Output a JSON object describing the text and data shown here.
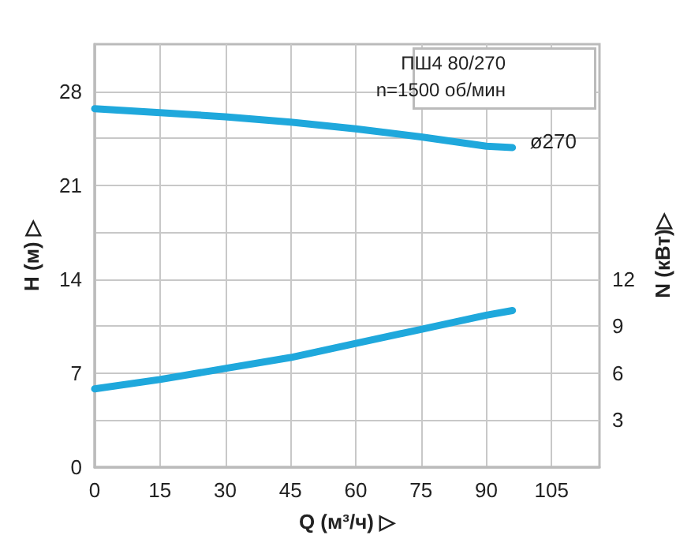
{
  "chart_data": {
    "type": "line",
    "xlabel": "Q (м³/ч) ▷",
    "ylabel": "H (м) ▷",
    "y2label": "N (кВт)▷",
    "annotations": [
      "ПШ4 80/270",
      "n=1500 об/мин"
    ],
    "series": [
      {
        "name": "ø270",
        "color": "#1fa8dc",
        "x": [
          0,
          15,
          30,
          45,
          60,
          75,
          90,
          96
        ],
        "values": [
          26.7,
          26.4,
          26.1,
          25.7,
          25.2,
          24.6,
          23.9,
          23.8
        ]
      },
      {
        "color": "#1fa8dc",
        "axis": "y2",
        "x": [
          0,
          15,
          30,
          45,
          60,
          75,
          90,
          96
        ],
        "values": [
          5.0,
          5.6,
          6.3,
          7.0,
          7.9,
          8.8,
          9.7,
          10.0
        ]
      }
    ],
    "xlim": [
      0,
      116
    ],
    "xticks": [
      0,
      15,
      30,
      45,
      60,
      75,
      90,
      105
    ],
    "ylim": [
      0,
      31.5
    ],
    "yticks": [
      0,
      {
        "value": 3.5,
        "label": null
      },
      7,
      {
        "value": 10.5,
        "label": null
      },
      14,
      {
        "value": 17.5,
        "label": null
      },
      21,
      {
        "value": 24.5,
        "label": null
      },
      28
    ],
    "y2lim": [
      0,
      27
    ],
    "y2ticks": [
      3,
      6,
      9,
      12
    ],
    "grid": true,
    "legend": false,
    "marker": "none",
    "line_style": "solid"
  }
}
